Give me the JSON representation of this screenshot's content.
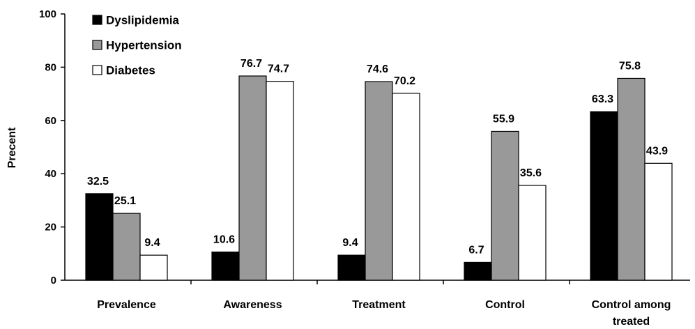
{
  "chart_data": {
    "type": "bar",
    "title": "",
    "xlabel": "",
    "ylabel": "Precent",
    "ylim": [
      0,
      100
    ],
    "yticks": [
      0,
      20,
      40,
      60,
      80,
      100
    ],
    "grid": false,
    "legend_position": "top-left",
    "categories": [
      [
        "Prevalence"
      ],
      [
        "Awareness"
      ],
      [
        "Treatment"
      ],
      [
        "Control"
      ],
      [
        "Control among",
        "treated"
      ]
    ],
    "series": [
      {
        "name": "Dyslipidemia",
        "color": "#000000",
        "values": [
          32.5,
          10.6,
          9.4,
          6.7,
          63.3
        ],
        "labels": [
          "32.5",
          "10.6",
          "9.4",
          "6.7",
          "63.3"
        ]
      },
      {
        "name": "Hypertension",
        "color": "#999999",
        "values": [
          25.1,
          76.7,
          74.6,
          55.9,
          75.8
        ],
        "labels": [
          "25.1",
          "76.7",
          "74.6",
          "55.9",
          "75.8"
        ]
      },
      {
        "name": "Diabetes",
        "color": "#ffffff",
        "values": [
          9.4,
          74.7,
          70.2,
          35.6,
          43.9
        ],
        "labels": [
          "9.4",
          "74.7",
          "70.2",
          "35.6",
          "43.9"
        ]
      }
    ]
  }
}
